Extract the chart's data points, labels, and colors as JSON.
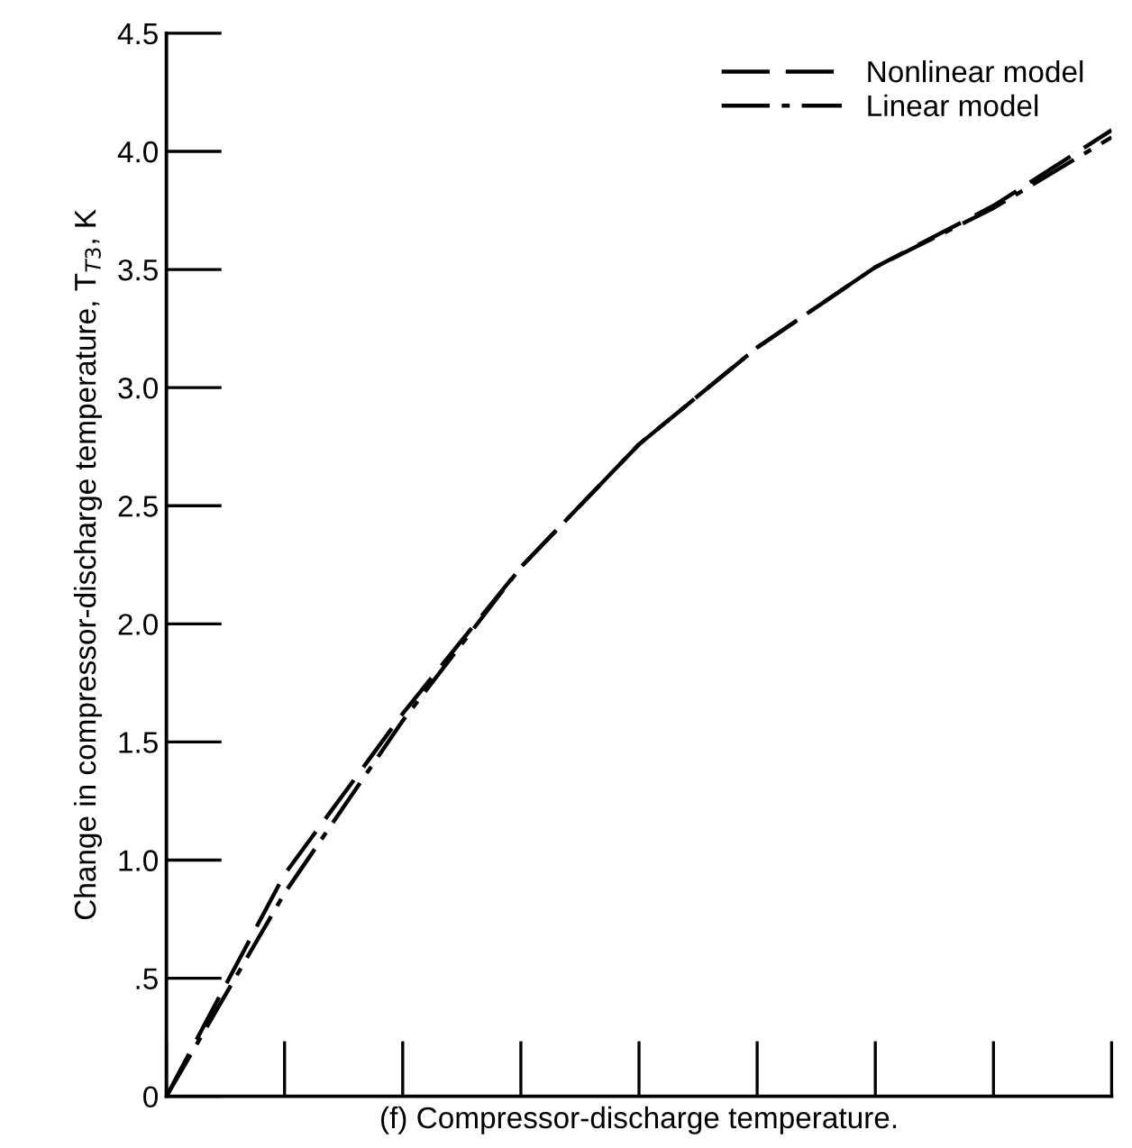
{
  "chart_data": {
    "type": "line",
    "xlabel": "(f) Compressor-discharge temperature.",
    "ylabel": "Change in compressor-discharge temperature, T$_{T3}$, K",
    "categories": [
      null,
      null,
      null,
      null,
      null,
      null,
      null,
      null,
      null
    ],
    "series": [
      {
        "name": "Nonlinear model",
        "color": "#000000",
        "line_style": "dashed",
        "values": [
          0,
          0.94,
          1.62,
          2.24,
          2.76,
          3.17,
          3.51,
          3.77,
          4.09
        ]
      },
      {
        "name": "Linear model",
        "color": "#000000",
        "line_style": "dashdot",
        "values": [
          0,
          0.86,
          1.59,
          2.24,
          2.76,
          3.17,
          3.51,
          3.76,
          4.06
        ]
      }
    ],
    "ylim": [
      0,
      4.5
    ],
    "yticks": [
      {
        "value": 0,
        "label": "0"
      },
      {
        "value": 0.5,
        "label": ".5"
      },
      {
        "value": 1,
        "label": "1.0"
      },
      {
        "value": 1.5,
        "label": "1.5"
      },
      {
        "value": 2,
        "label": "2.0"
      },
      {
        "value": 2.5,
        "label": "2.5"
      },
      {
        "value": 3,
        "label": "3.0"
      },
      {
        "value": 3.5,
        "label": "3.5"
      },
      {
        "value": 4,
        "label": "4.0"
      },
      {
        "value": 4.5,
        "label": "4.5"
      }
    ],
    "tick_labels": "y",
    "grid": false,
    "legend": "top right"
  }
}
